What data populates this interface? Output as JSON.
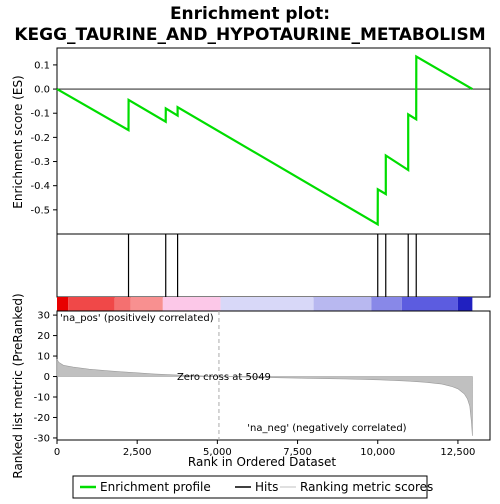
{
  "chart_data": {
    "type": "line",
    "title_line1": "Enrichment plot:",
    "title_line2": "KEGG_TAURINE_AND_HYPOTAURINE_METABOLISM",
    "es_ylabel": "Enrichment score (ES)",
    "metric_ylabel": "Ranked list metric (PreRanked)",
    "xlabel": "Rank in Ordered Dataset",
    "x_range": [
      0,
      13500
    ],
    "x_ticks": [
      0,
      2500,
      5000,
      7500,
      10000,
      12500
    ],
    "x_tick_labels": [
      "0",
      "2,500",
      "5,000",
      "7,500",
      "10,000",
      "12,500"
    ],
    "es_range": [
      -0.6,
      0.17
    ],
    "es_ticks": [
      0.1,
      0.0,
      -0.1,
      -0.2,
      -0.3,
      -0.4,
      -0.5
    ],
    "es_tick_labels": [
      "0.1",
      "0.0",
      "-0.1",
      "-0.2",
      "-0.3",
      "-0.4",
      "-0.5"
    ],
    "metric_range": [
      -31,
      32
    ],
    "metric_ticks": [
      30,
      20,
      10,
      0,
      -10,
      -20,
      -30
    ],
    "metric_tick_labels": [
      "30",
      "20",
      "10",
      "0",
      "-10",
      "-20",
      "-30"
    ],
    "n_genes": 12950,
    "zero_cross": 5049,
    "zero_cross_label": "Zero cross at 5049",
    "pos_label": "'na_pos' (positively correlated)",
    "neg_label": "'na_neg' (negatively correlated)",
    "hits": [
      2230,
      3390,
      3760,
      10000,
      10250,
      10950,
      11200
    ],
    "enrichment_profile": {
      "x": [
        0,
        2230,
        2231,
        3390,
        3391,
        3760,
        3761,
        10000,
        10001,
        10250,
        10251,
        10950,
        10951,
        11200,
        11201,
        12950
      ],
      "y": [
        0.0,
        -0.17,
        -0.045,
        -0.135,
        -0.08,
        -0.11,
        -0.075,
        -0.56,
        -0.415,
        -0.435,
        -0.275,
        -0.335,
        -0.105,
        -0.125,
        0.135,
        0.0
      ]
    },
    "ranking_metric": {
      "x": [
        0,
        50,
        200,
        500,
        1000,
        1500,
        2000,
        2500,
        3000,
        3500,
        4000,
        4500,
        5049,
        6000,
        7000,
        8000,
        9000,
        10000,
        10500,
        11000,
        11500,
        12000,
        12300,
        12500,
        12700,
        12800,
        12870,
        12920,
        12950
      ],
      "y": [
        8.5,
        7.0,
        5.5,
        4.6,
        3.6,
        2.9,
        2.3,
        1.8,
        1.3,
        0.9,
        0.6,
        0.3,
        0.0,
        -0.3,
        -0.6,
        -0.9,
        -1.2,
        -1.6,
        -1.9,
        -2.3,
        -2.8,
        -3.7,
        -4.8,
        -6.0,
        -8.5,
        -11.0,
        -14.5,
        -22.0,
        -29.0
      ]
    },
    "colors": {
      "profile": "#00dd00",
      "hits": "#000000",
      "metric_fill": "#c0c0c0",
      "zero_line": "#aaaaaa",
      "pos_label": "#dd0000",
      "neg_label": "#0000cc"
    },
    "heat_bar": [
      {
        "from": 0,
        "to": 350,
        "color": "#e80000"
      },
      {
        "from": 350,
        "to": 1800,
        "color": "#f04848"
      },
      {
        "from": 1800,
        "to": 2300,
        "color": "#f47070"
      },
      {
        "from": 2300,
        "to": 3300,
        "color": "#f89090"
      },
      {
        "from": 3300,
        "to": 5100,
        "color": "#fcc8e8"
      },
      {
        "from": 5100,
        "to": 8000,
        "color": "#d8d8f8"
      },
      {
        "from": 8000,
        "to": 9800,
        "color": "#b8b8f0"
      },
      {
        "from": 9800,
        "to": 10750,
        "color": "#8888e8"
      },
      {
        "from": 10750,
        "to": 12500,
        "color": "#5c5ce0"
      },
      {
        "from": 12500,
        "to": 12950,
        "color": "#2020c0"
      }
    ],
    "legend": [
      {
        "name": "Enrichment profile",
        "color": "#00dd00"
      },
      {
        "name": "Hits",
        "color": "#000000"
      },
      {
        "name": "Ranking metric scores",
        "color": "#c0c0c0"
      }
    ]
  }
}
